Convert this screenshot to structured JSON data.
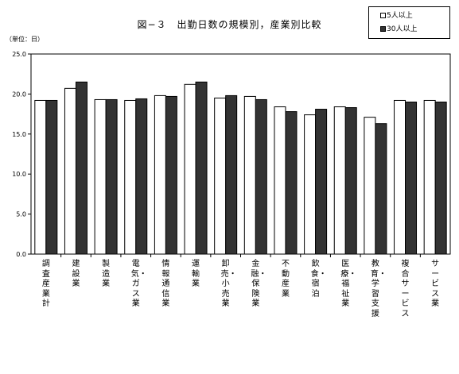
{
  "title": "図−３　出勤日数の規模別，産業別比較",
  "unit_label": "（単位：日）",
  "legend": [
    {
      "label": "5人以上",
      "color": "#ffffff"
    },
    {
      "label": "30人以上",
      "color": "#333333"
    }
  ],
  "chart_data": {
    "type": "bar",
    "ylim": [
      0,
      25
    ],
    "yticks": [
      "0.0",
      "5.0",
      "10.0",
      "15.0",
      "20.0",
      "25.0"
    ],
    "categories": [
      "調査産業計",
      "建設業",
      "製造業",
      "電気・ガス業",
      "情報通信業",
      "運輸業",
      "卸売・小売業",
      "金融・保険業",
      "不動産業",
      "飲食・宿泊",
      "医療・福祉業",
      "教育・学習支援",
      "複合サービス",
      "サービス業"
    ],
    "series": [
      {
        "name": "5人以上",
        "color": "#ffffff",
        "values": [
          19.2,
          20.7,
          19.3,
          19.2,
          19.8,
          21.2,
          19.5,
          19.7,
          18.4,
          17.4,
          18.4,
          17.1,
          19.2,
          19.2
        ]
      },
      {
        "name": "30人以上",
        "color": "#333333",
        "values": [
          19.2,
          21.5,
          19.3,
          19.4,
          19.7,
          21.5,
          19.8,
          19.3,
          17.8,
          18.1,
          18.3,
          16.3,
          19.0,
          19.0
        ]
      }
    ]
  }
}
